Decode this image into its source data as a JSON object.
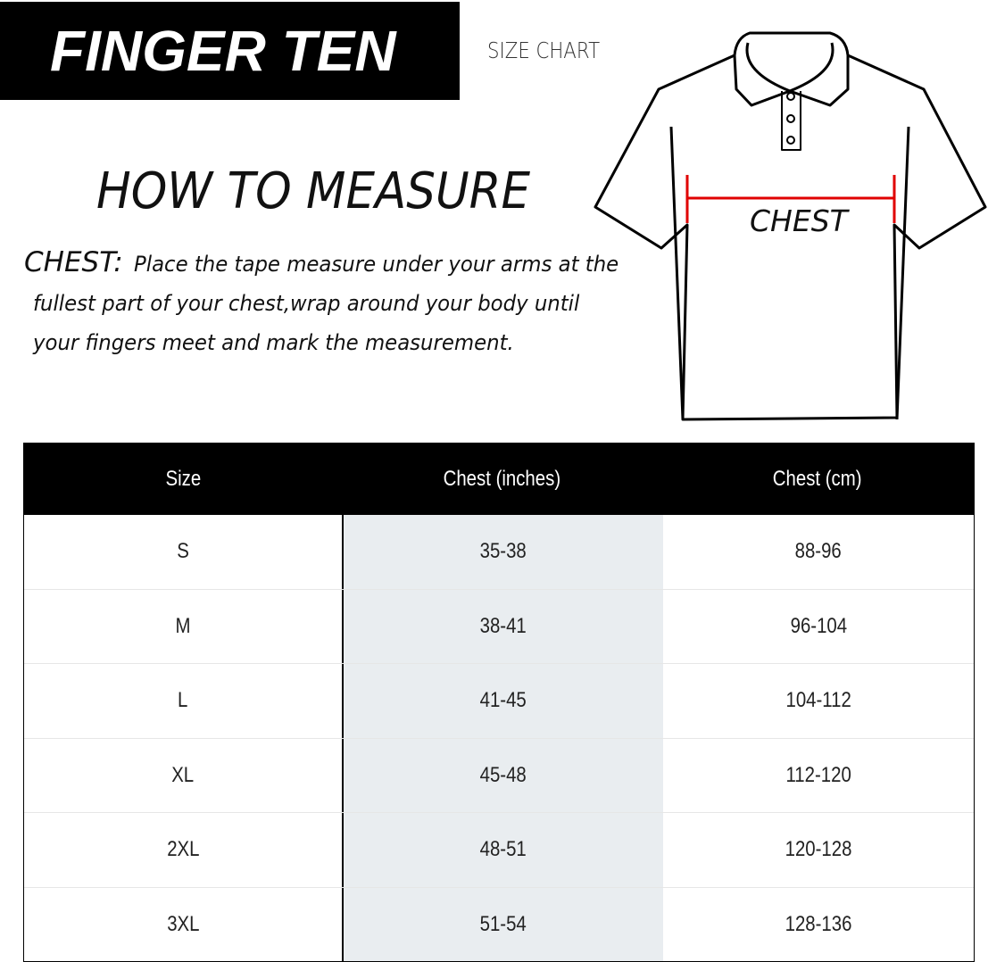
{
  "brand": "FINGER TEN",
  "subtitle": "SIZE CHART",
  "heading": "HOW TO MEASURE",
  "instructions": {
    "label": "CHEST:",
    "lines": [
      "Place the tape measure under your arms at the",
      "fullest part of your chest,wrap around your body until",
      "your fingers meet and mark the measurement."
    ]
  },
  "diagram": {
    "chest_label": "CHEST",
    "measure_color": "#e00000"
  },
  "table": {
    "headers": [
      "Size",
      "Chest (inches)",
      "Chest (cm)"
    ],
    "rows": [
      [
        "S",
        "35-38",
        "88-96"
      ],
      [
        "M",
        "38-41",
        "96-104"
      ],
      [
        "L",
        "41-45",
        "104-112"
      ],
      [
        "XL",
        "45-48",
        "112-120"
      ],
      [
        "2XL",
        "48-51",
        "120-128"
      ],
      [
        "3XL",
        "51-54",
        "128-136"
      ]
    ]
  }
}
